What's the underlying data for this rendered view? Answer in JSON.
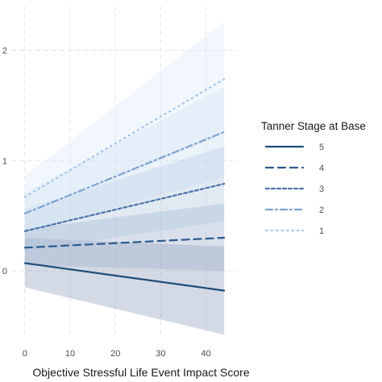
{
  "chart_data": {
    "type": "line",
    "title": "",
    "xlabel": "Objective Stressful Life Event Impact Score",
    "ylabel": "",
    "xlim": [
      -3,
      47
    ],
    "ylim": [
      -0.6,
      2.4
    ],
    "x_ticks": [
      0,
      10,
      20,
      30,
      40
    ],
    "y_ticks": [
      {
        "value": 0,
        "label": "0"
      },
      {
        "value": 1,
        "label": "1"
      },
      {
        "value": 2,
        "label": "2"
      }
    ],
    "grid": true,
    "legend": {
      "title": "Tanner Stage at Base",
      "placement": "right"
    },
    "series": [
      {
        "name": "5",
        "x": [
          0,
          44
        ],
        "y": [
          0.07,
          -0.18
        ],
        "lower": [
          -0.15,
          -0.58
        ],
        "upper": [
          0.3,
          0.22
        ],
        "color": "#1f4e79",
        "style": "solid"
      },
      {
        "name": "4",
        "x": [
          0,
          44
        ],
        "y": [
          0.21,
          0.3
        ],
        "lower": [
          0.05,
          0.0
        ],
        "upper": [
          0.38,
          0.61
        ],
        "color": "#2c5a8c",
        "style": "longdash"
      },
      {
        "name": "3",
        "x": [
          0,
          44
        ],
        "y": [
          0.36,
          0.79
        ],
        "lower": [
          0.18,
          0.45
        ],
        "upper": [
          0.56,
          1.13
        ],
        "color": "#4c75a8",
        "style": "dashed"
      },
      {
        "name": "2",
        "x": [
          0,
          44
        ],
        "y": [
          0.52,
          1.26
        ],
        "lower": [
          0.34,
          0.85
        ],
        "upper": [
          0.71,
          1.67
        ],
        "color": "#7ea2cf",
        "style": "dotdash"
      },
      {
        "name": "1",
        "x": [
          0,
          44
        ],
        "y": [
          0.67,
          1.74
        ],
        "lower": [
          0.49,
          1.24
        ],
        "upper": [
          0.86,
          2.26
        ],
        "color": "#a7c6ea",
        "style": "dotted"
      }
    ]
  }
}
